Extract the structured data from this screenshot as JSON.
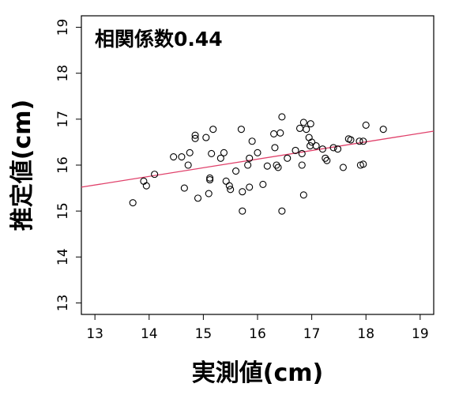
{
  "chart_data": {
    "type": "scatter",
    "annotation": "相関係数0.44",
    "xlabel": "実測値(cm)",
    "ylabel": "推定値(cm)",
    "xlim": [
      12.75,
      19.25
    ],
    "ylim": [
      12.75,
      19.25
    ],
    "xticks": [
      "13",
      "14",
      "15",
      "16",
      "17",
      "18",
      "19"
    ],
    "yticks": [
      "13",
      "14",
      "15",
      "16",
      "17",
      "18",
      "19"
    ],
    "point_color": "#000000",
    "fit_line_color": "#e0406a",
    "fit_line": [
      [
        12.75,
        15.52
      ],
      [
        19.25,
        16.74
      ]
    ],
    "points": [
      [
        13.7,
        15.18
      ],
      [
        13.9,
        15.65
      ],
      [
        13.95,
        15.55
      ],
      [
        14.1,
        15.8
      ],
      [
        14.45,
        16.18
      ],
      [
        14.6,
        16.18
      ],
      [
        14.65,
        15.5
      ],
      [
        14.72,
        16.0
      ],
      [
        14.75,
        16.27
      ],
      [
        14.85,
        16.65
      ],
      [
        14.85,
        16.58
      ],
      [
        14.9,
        15.28
      ],
      [
        15.05,
        16.6
      ],
      [
        15.1,
        15.38
      ],
      [
        15.12,
        15.72
      ],
      [
        15.12,
        15.68
      ],
      [
        15.15,
        16.25
      ],
      [
        15.18,
        16.78
      ],
      [
        15.32,
        16.15
      ],
      [
        15.38,
        16.27
      ],
      [
        15.42,
        15.65
      ],
      [
        15.48,
        15.55
      ],
      [
        15.5,
        15.47
      ],
      [
        15.6,
        15.87
      ],
      [
        15.7,
        16.78
      ],
      [
        15.72,
        15.42
      ],
      [
        15.72,
        15.0
      ],
      [
        15.82,
        16.0
      ],
      [
        15.85,
        15.52
      ],
      [
        15.85,
        16.15
      ],
      [
        15.9,
        16.52
      ],
      [
        16.0,
        16.27
      ],
      [
        16.1,
        15.58
      ],
      [
        16.18,
        15.98
      ],
      [
        16.3,
        16.68
      ],
      [
        16.32,
        16.38
      ],
      [
        16.35,
        16.0
      ],
      [
        16.38,
        15.95
      ],
      [
        16.42,
        16.7
      ],
      [
        16.45,
        17.05
      ],
      [
        16.45,
        15.0
      ],
      [
        16.55,
        16.15
      ],
      [
        16.7,
        16.32
      ],
      [
        16.78,
        16.8
      ],
      [
        16.82,
        16.25
      ],
      [
        16.82,
        16.0
      ],
      [
        16.85,
        15.35
      ],
      [
        16.85,
        16.93
      ],
      [
        16.9,
        16.78
      ],
      [
        16.95,
        16.6
      ],
      [
        16.97,
        16.42
      ],
      [
        16.98,
        16.9
      ],
      [
        17.0,
        16.5
      ],
      [
        17.08,
        16.42
      ],
      [
        17.2,
        16.35
      ],
      [
        17.25,
        16.15
      ],
      [
        17.28,
        16.1
      ],
      [
        17.4,
        16.38
      ],
      [
        17.48,
        16.35
      ],
      [
        17.58,
        15.95
      ],
      [
        17.68,
        16.57
      ],
      [
        17.72,
        16.55
      ],
      [
        17.88,
        16.52
      ],
      [
        17.9,
        16.0
      ],
      [
        17.95,
        16.02
      ],
      [
        17.95,
        16.52
      ],
      [
        18.0,
        16.87
      ],
      [
        18.32,
        16.78
      ]
    ]
  }
}
